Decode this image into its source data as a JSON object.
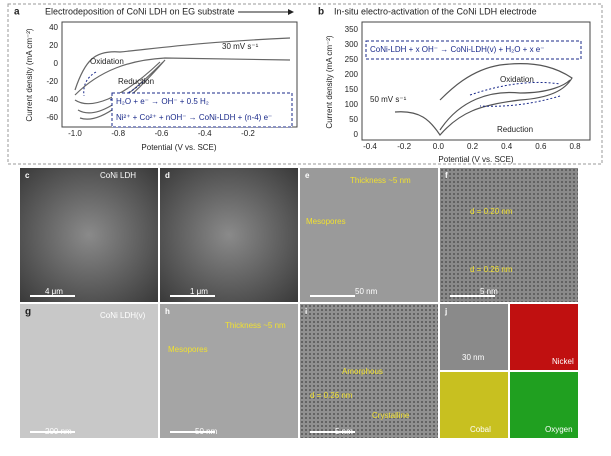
{
  "panel_a": {
    "label": "a",
    "title": "Electrodeposition of CoNi LDH on EG substrate",
    "ylabel": "Current density (mA cm⁻²)",
    "xlabel": "Potential (V vs. SCE)",
    "xticks": [
      "-1.0",
      "-0.8",
      "-0.6",
      "-0.4",
      "-0.2"
    ],
    "yticks": [
      "40",
      "20",
      "0",
      "-20",
      "-40",
      "-60"
    ],
    "scan_rate": "30 mV s⁻¹",
    "oxidation": "Oxidation",
    "reduction": "Reduction",
    "equation_1": "H₂O + e⁻ → OH⁻ + 0.5 H₂",
    "equation_2": "Ni²⁺ + Co²⁺ + nOH⁻ → CoNi-LDH + (n-4) e⁻"
  },
  "panel_b": {
    "label": "b",
    "title": "In-situ electro-activation of the CoNi LDH electrode",
    "ylabel": "Current density (mA cm⁻²)",
    "xlabel": "Potential (V vs. SCE)",
    "xticks": [
      "-0.4",
      "-0.2",
      "0.0",
      "0.2",
      "0.4",
      "0.6",
      "0.8"
    ],
    "yticks": [
      "350",
      "300",
      "250",
      "200",
      "150",
      "100",
      "50",
      "0"
    ],
    "scan_rate": "50 mV s⁻¹",
    "oxidation": "Oxidation",
    "reduction": "Reduction",
    "equation": "CoNi-LDH + x OH⁻ → CoNi-LDH(v) + H₂O + x e⁻"
  },
  "images": [
    {
      "label": "c",
      "texts": [
        "CoNi LDH",
        "4 μm"
      ]
    },
    {
      "label": "d",
      "texts": [
        "1 μm"
      ]
    },
    {
      "label": "e",
      "texts": [
        "Thickness ~5 nm",
        "Mesopores",
        "50 nm"
      ]
    },
    {
      "label": "f",
      "texts": [
        "d = 0.20 nm",
        "d = 0.26 nm",
        "5 nm"
      ]
    },
    {
      "label": "g",
      "texts": [
        "CoNi LDH(v)",
        "200 nm"
      ]
    },
    {
      "label": "h",
      "texts": [
        "Thickness ~5 nm",
        "Mesopores",
        "50 nm"
      ]
    },
    {
      "label": "i",
      "texts": [
        "Amorphous",
        "d = 0.26 nm",
        "Crystalline",
        "5 nm"
      ]
    },
    {
      "label": "j",
      "texts": [
        "30 nm",
        "Nickel",
        "Cobal",
        "Oxygen"
      ]
    }
  ]
}
